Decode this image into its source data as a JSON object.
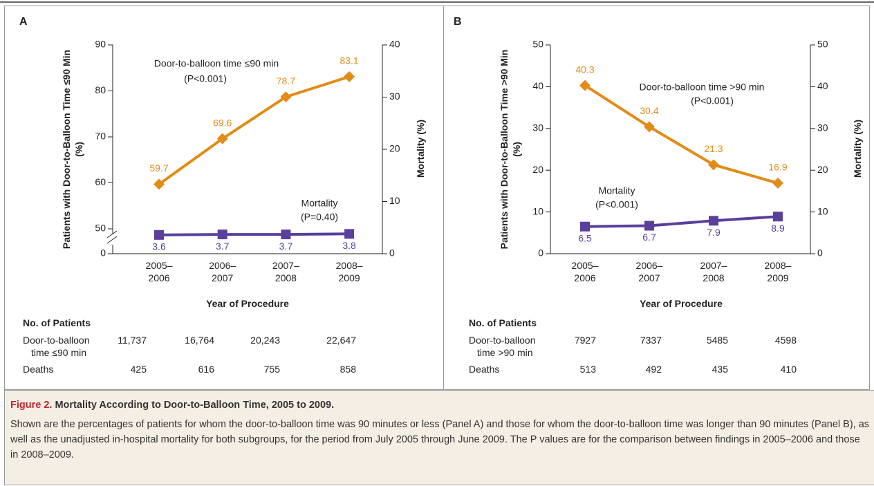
{
  "chart_data": [
    {
      "type": "line",
      "panel": "A",
      "categories": [
        "2005–2006",
        "2006–2007",
        "2007–2008",
        "2008–2009"
      ],
      "xlabel": "Year of Procedure",
      "ylabel": "Patients with Door-to-Balloon Time ≤90 Min (%)",
      "y2label": "Mortality (%)",
      "ylim": [
        0,
        90
      ],
      "yticks": [
        0,
        50,
        60,
        70,
        80,
        90
      ],
      "ybreak": [
        0,
        50
      ],
      "y2lim": [
        0,
        40
      ],
      "y2ticks": [
        0,
        10,
        20,
        30,
        40
      ],
      "series": [
        {
          "name": "Door-to-balloon time ≤90 min",
          "note": "(P<0.001)",
          "color": "#e38b17",
          "marker": "diamond",
          "values": [
            59.7,
            69.6,
            78.7,
            83.1
          ]
        },
        {
          "name": "Mortality",
          "note": "(P=0.40)",
          "color": "#5a3f9c",
          "marker": "square",
          "axis": "y2",
          "values": [
            3.6,
            3.7,
            3.7,
            3.8
          ]
        }
      ],
      "patients": {
        "title": "No. of Patients",
        "rows": [
          {
            "label": "Door-to-balloon time ≤90 min",
            "values": [
              "11,737",
              "16,764",
              "20,243",
              "22,647"
            ]
          },
          {
            "label": "Deaths",
            "values": [
              "425",
              "616",
              "755",
              "858"
            ]
          }
        ]
      }
    },
    {
      "type": "line",
      "panel": "B",
      "categories": [
        "2005–2006",
        "2006–2007",
        "2007–2008",
        "2008–2009"
      ],
      "xlabel": "Year of Procedure",
      "ylabel": "Patients with Door-to-Balloon Time >90 Min (%)",
      "y2label": "Mortality (%)",
      "ylim": [
        0,
        50
      ],
      "yticks": [
        0,
        10,
        20,
        30,
        40,
        50
      ],
      "y2lim": [
        0,
        50
      ],
      "y2ticks": [
        0,
        10,
        20,
        30,
        40,
        50
      ],
      "series": [
        {
          "name": "Door-to-balloon time >90 min",
          "note": "(P<0.001)",
          "color": "#e38b17",
          "marker": "diamond",
          "values": [
            40.3,
            30.4,
            21.3,
            16.9
          ]
        },
        {
          "name": "Mortality",
          "note": "(P<0.001)",
          "color": "#5a3f9c",
          "marker": "square",
          "axis": "y2",
          "values": [
            6.5,
            6.7,
            7.9,
            8.9
          ]
        }
      ],
      "patients": {
        "title": "No. of Patients",
        "rows": [
          {
            "label": "Door-to-balloon time >90 min",
            "values": [
              "7927",
              "7337",
              "5485",
              "4598"
            ]
          },
          {
            "label": "Deaths",
            "values": [
              "513",
              "492",
              "435",
              "410"
            ]
          }
        ]
      }
    }
  ],
  "caption": {
    "label": "Figure 2.",
    "title": "Mortality According to Door-to-Balloon Time, 2005 to 2009.",
    "text": "Shown are the percentages of patients for whom the door-to-balloon time was 90 minutes or less (Panel A) and those for whom the door-to-balloon time was longer than 90 minutes (Panel B), as well as the unadjusted in-hospital mortality for both subgroups, for the period from July 2005 through June 2009. The P values are for the comparison between findings in 2005–2006 and those in 2008–2009."
  }
}
